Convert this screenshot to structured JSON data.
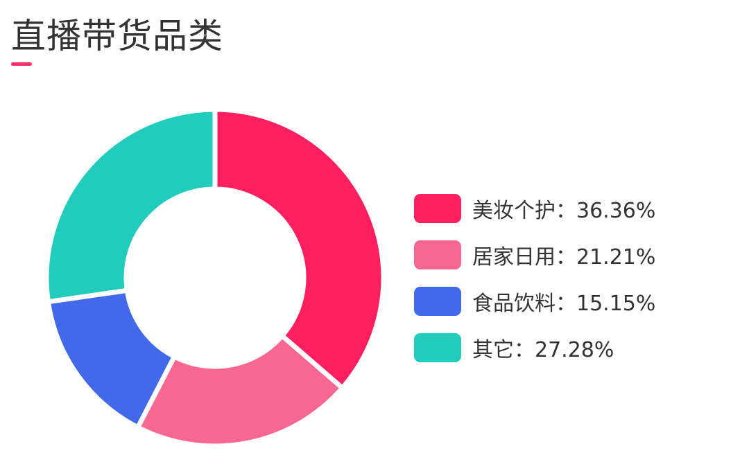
{
  "chart_data": {
    "type": "pie",
    "title": "直播带货品类",
    "accent_color": "#ff2d6a",
    "categories": [
      "美妆个护",
      "居家日用",
      "食品饮料",
      "其它"
    ],
    "values": [
      36.36,
      21.21,
      15.15,
      27.28
    ],
    "labels": [
      "36.36%",
      "21.21%",
      "15.15%",
      "27.28%"
    ],
    "colors": [
      "#ff1f5f",
      "#f86791",
      "#4269ea",
      "#22ccbc"
    ],
    "separator": "：",
    "donut": true,
    "legend": "right"
  }
}
